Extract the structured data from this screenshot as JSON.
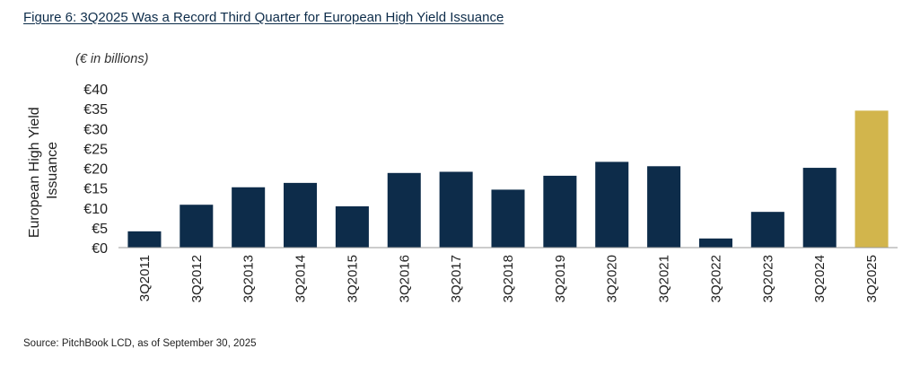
{
  "figure_title": "Figure 6: 3Q2025 Was a Record Third Quarter for European High Yield Issuance",
  "unit_note": "(€ in billions)",
  "source_note": "Source: PitchBook LCD, as of September 30, 2025",
  "chart_data": {
    "type": "bar",
    "title": "Figure 6: 3Q2025 Was a Record Third Quarter for European High Yield Issuance",
    "ylabel_lines": [
      "European High Yield",
      "Issuance"
    ],
    "xlabel": "",
    "ylim": [
      0,
      40
    ],
    "yticks": [
      0,
      5,
      10,
      15,
      20,
      25,
      30,
      35,
      40
    ],
    "ytick_labels": [
      "€0",
      "€5",
      "€10",
      "€15",
      "€20",
      "€25",
      "€30",
      "€35",
      "€40"
    ],
    "categories": [
      "3Q2011",
      "3Q2012",
      "3Q2013",
      "3Q2014",
      "3Q2015",
      "3Q2016",
      "3Q2017",
      "3Q2018",
      "3Q2019",
      "3Q2020",
      "3Q2021",
      "3Q2022",
      "3Q2023",
      "3Q2024",
      "3Q2025"
    ],
    "values": [
      4.1,
      10.8,
      15.2,
      16.3,
      10.4,
      18.8,
      19.1,
      14.6,
      18.1,
      21.6,
      20.5,
      2.3,
      9.0,
      20.1,
      34.5
    ],
    "grid": false,
    "legend": "none",
    "colors": {
      "default": "#0d2c4a",
      "highlight": "#d2b54c"
    },
    "highlight_category": "3Q2025"
  }
}
